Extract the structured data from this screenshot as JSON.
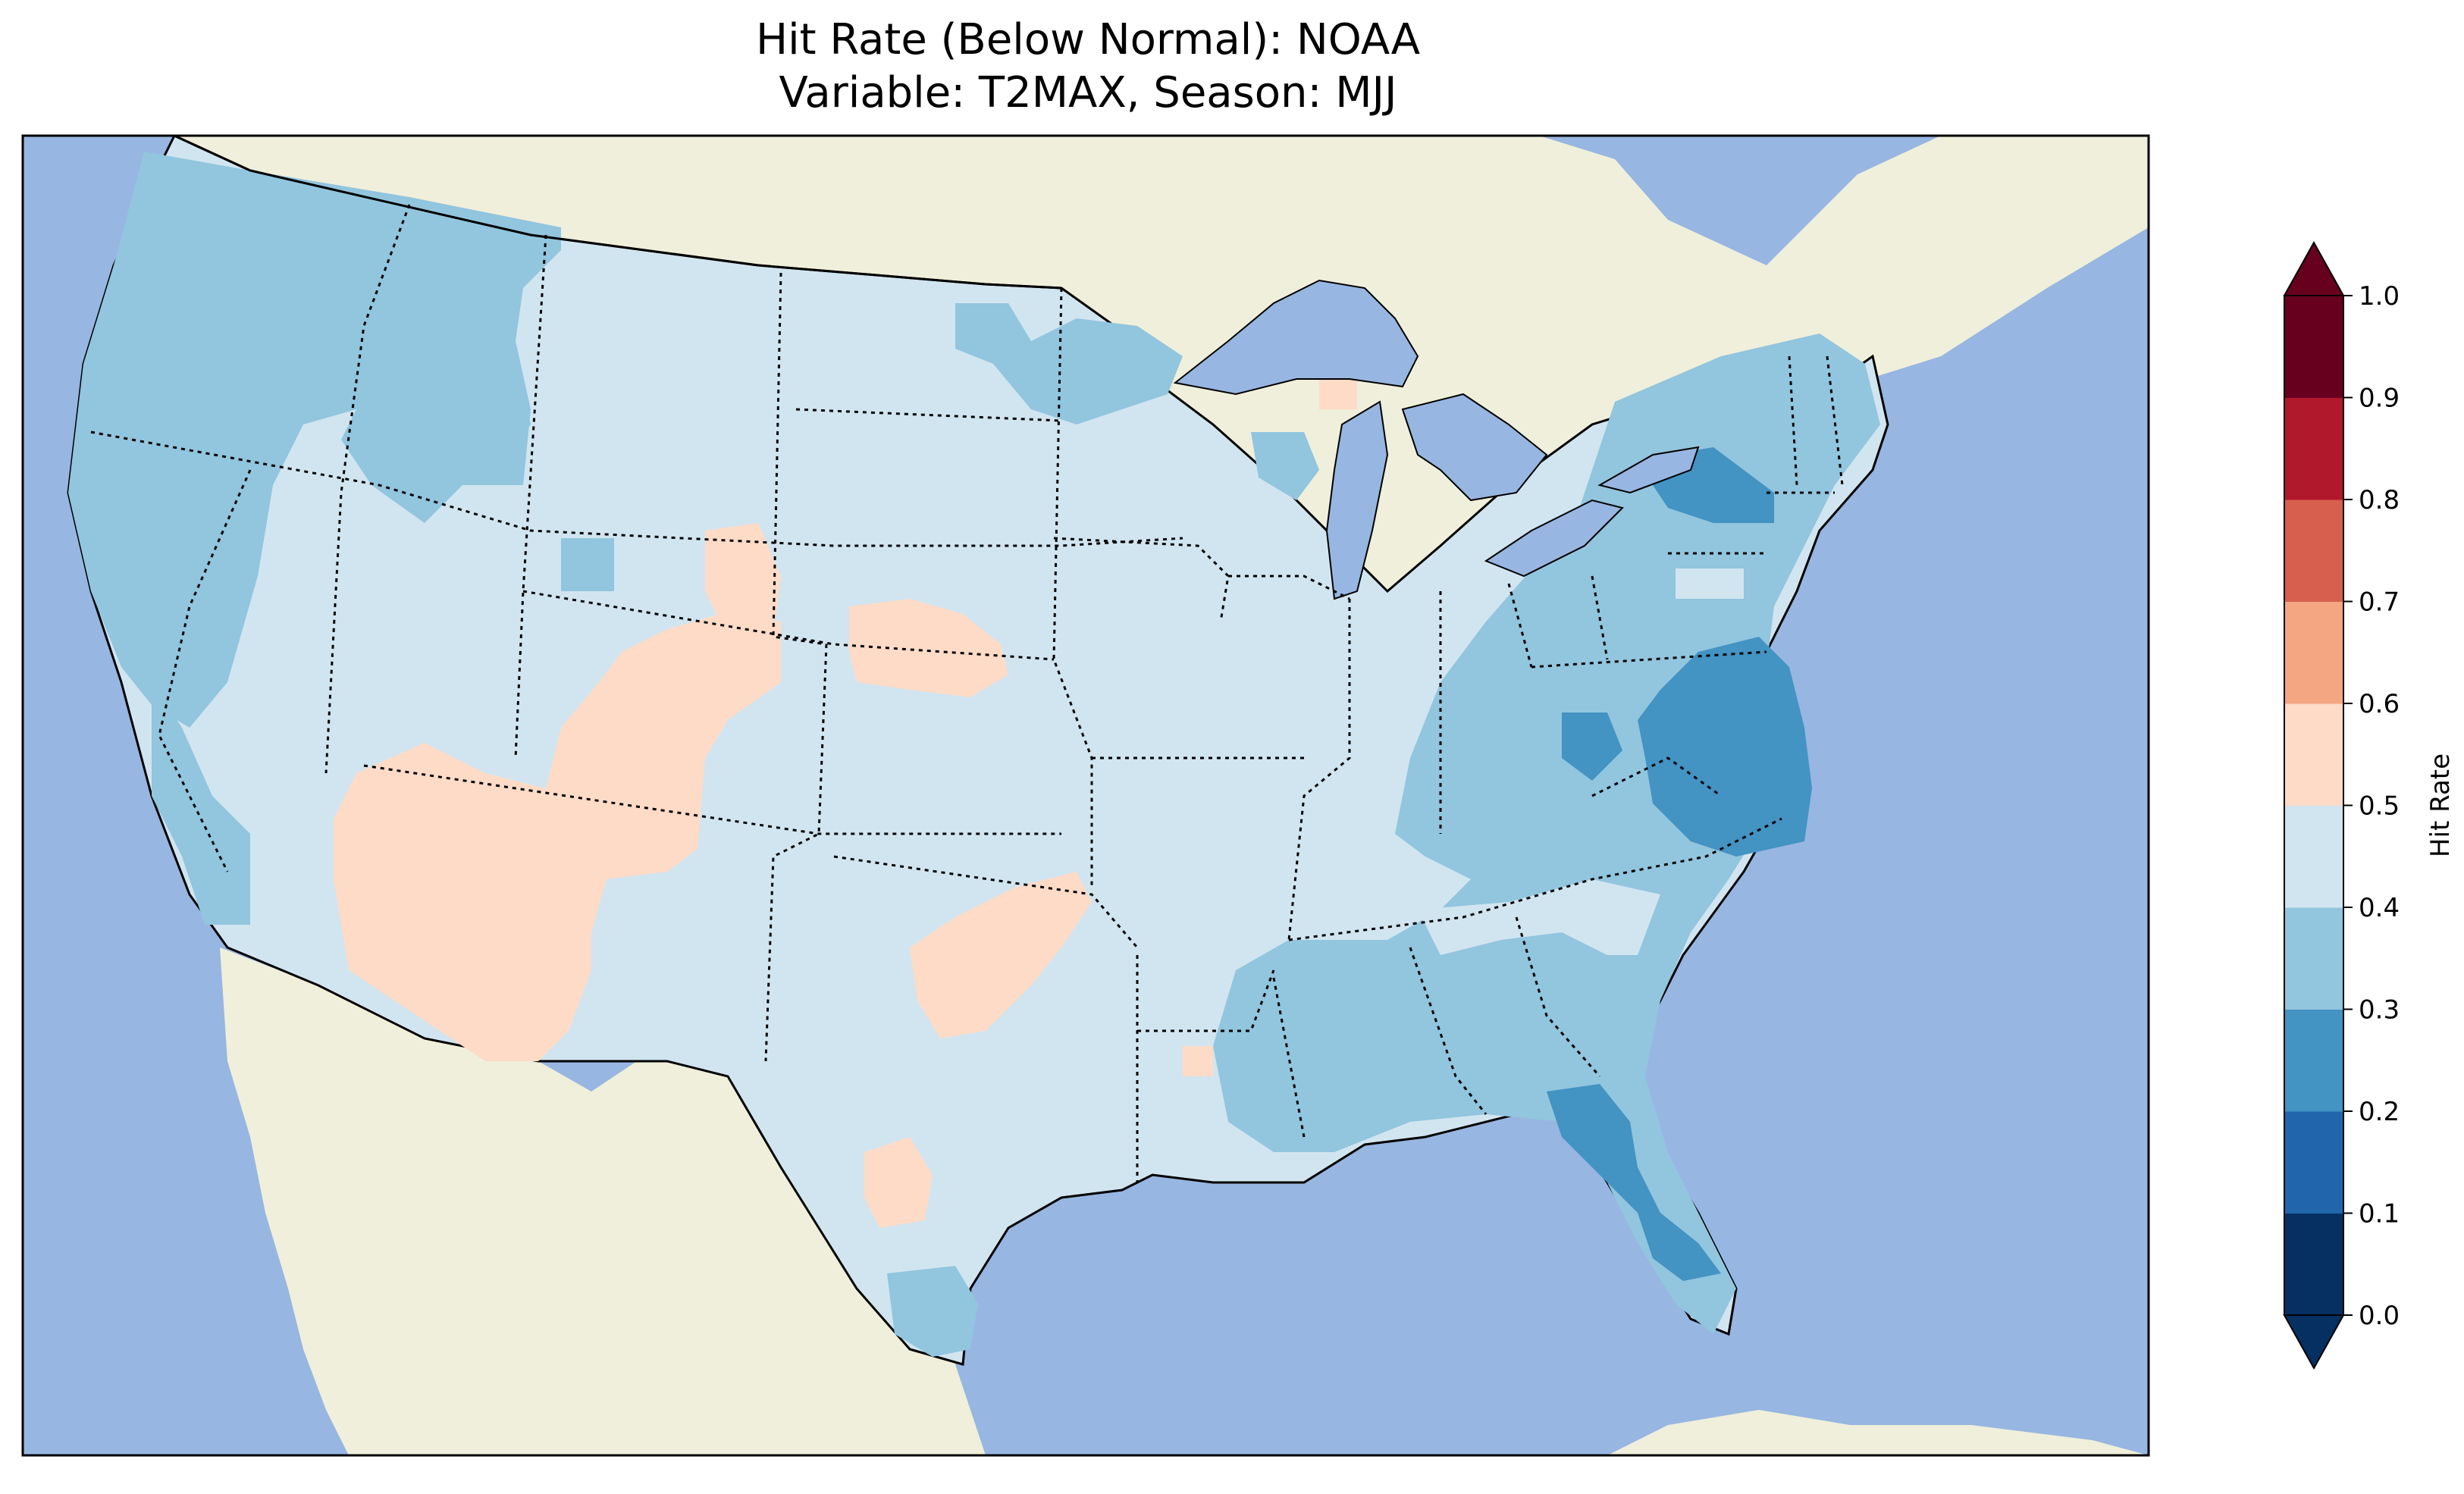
{
  "title_line1": "Hit Rate (Below Normal): NOAA",
  "title_line2": "Variable: T2MAX, Season: MJJ",
  "colors": {
    "ocean": "#97b6e1",
    "land": "#efefdb",
    "borders": "#000000"
  },
  "colorbar": {
    "label": "Hit Rate",
    "ticks": [
      "0.0",
      "0.1",
      "0.2",
      "0.3",
      "0.4",
      "0.5",
      "0.6",
      "0.7",
      "0.8",
      "0.9",
      "1.0"
    ],
    "colors": [
      "#053061",
      "#2166ac",
      "#4393c3",
      "#92c5de",
      "#d1e5f0",
      "#fddbc7",
      "#f4a582",
      "#d6604d",
      "#b2182b",
      "#67001f"
    ],
    "under_color": "#053061",
    "over_color": "#67001f",
    "extend": "both"
  },
  "hit_rate_legend": {
    "lowest_region": "0.2–0.3",
    "highest_region": "0.5–0.6"
  }
}
